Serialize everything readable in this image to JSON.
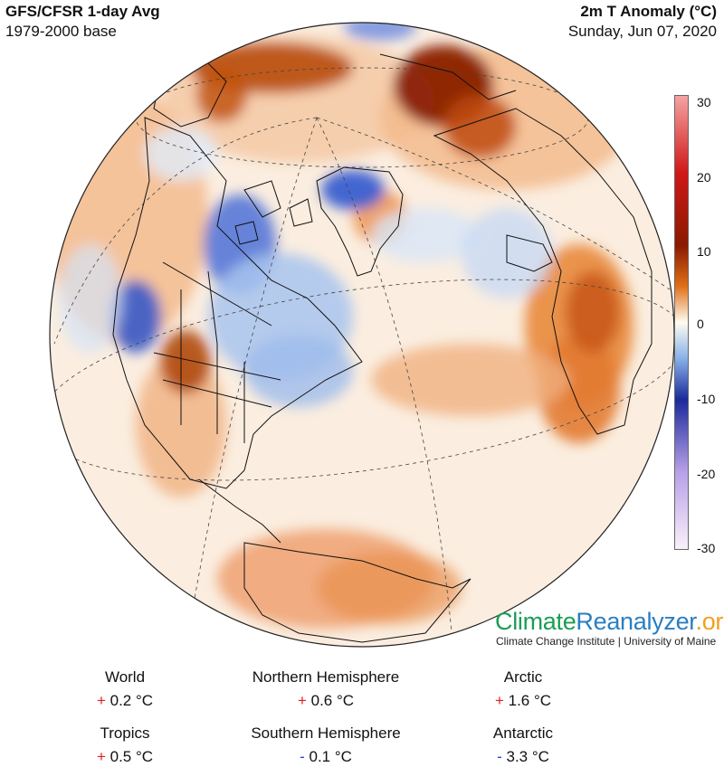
{
  "header": {
    "title_left": "GFS/CFSR 1-day Avg",
    "subtitle_left": "1979-2000 base",
    "title_right": "2m T Anomaly (°C)",
    "subtitle_right": "Sunday, Jun 07, 2020"
  },
  "colorbar": {
    "labels": [
      "30",
      "20",
      "10",
      "0",
      "-10",
      "-20",
      "-30"
    ],
    "colors": {
      "p30": "#f6a3a3",
      "p20": "#d01818",
      "p10": "#8a1a00",
      "p5": "#e07018",
      "p0": "#fffcf0",
      "m5": "#88b0e8",
      "m10": "#1a2a9a",
      "m20": "#b8a0e8",
      "m30": "#faf0fa"
    }
  },
  "brand": {
    "part1": "Climate",
    "part2": "Reanalyzer",
    "part3": ".org",
    "credit": "Climate Change Institute | University of Maine"
  },
  "stats": {
    "world": {
      "name": "World",
      "sign": "+",
      "value": "0.2 °C"
    },
    "nh": {
      "name": "Northern Hemisphere",
      "sign": "+",
      "value": "0.6 °C"
    },
    "arctic": {
      "name": "Arctic",
      "sign": "+",
      "value": "1.6 °C"
    },
    "tropics": {
      "name": "Tropics",
      "sign": "+",
      "value": "0.5 °C"
    },
    "sh": {
      "name": "Southern Hemisphere",
      "sign": "-",
      "value": "0.1 °C"
    },
    "antarctic": {
      "name": "Antarctic",
      "sign": "-",
      "value": "3.3 °C"
    }
  }
}
